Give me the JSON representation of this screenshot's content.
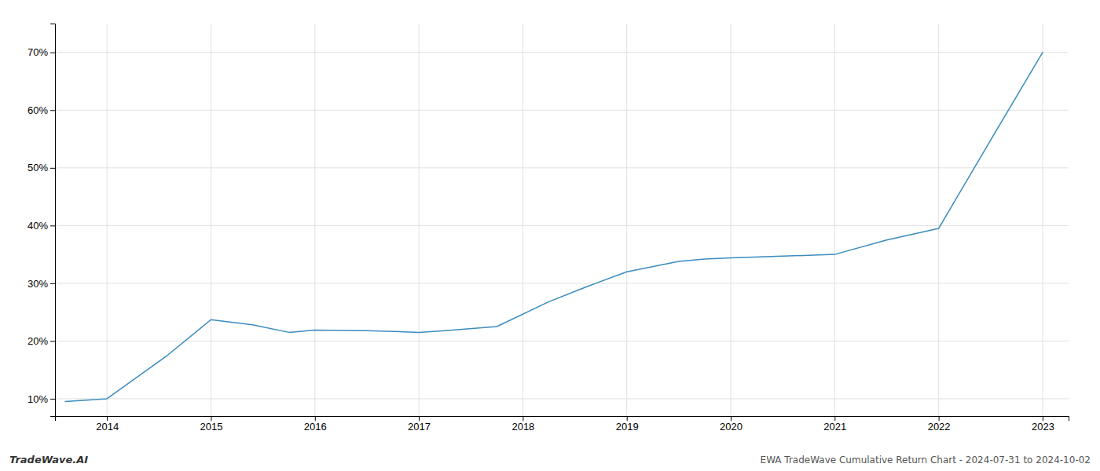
{
  "chart_data": {
    "type": "line",
    "x": [
      2013.6,
      2014.0,
      2014.58,
      2015.0,
      2015.4,
      2015.75,
      2016.0,
      2016.5,
      2017.0,
      2017.25,
      2017.75,
      2018.25,
      2018.6,
      2019.0,
      2019.5,
      2019.75,
      2020.0,
      2020.5,
      2021.0,
      2021.5,
      2022.0,
      2022.5,
      2023.0
    ],
    "values": [
      0.095,
      0.1,
      0.175,
      0.237,
      0.228,
      0.215,
      0.219,
      0.218,
      0.215,
      0.218,
      0.225,
      0.268,
      0.293,
      0.32,
      0.338,
      0.342,
      0.344,
      0.347,
      0.35,
      0.375,
      0.395,
      0.548,
      0.7
    ],
    "color": "#3a8bbf",
    "xlim": [
      2013.5,
      2023.25
    ],
    "xticks": [
      2014,
      2015,
      2016,
      2017,
      2018,
      2019,
      2020,
      2021,
      2022,
      2023
    ],
    "ylim": [
      0.07,
      0.75
    ],
    "yticks": [
      {
        "value": 0.1,
        "label": "10%"
      },
      {
        "value": 0.2,
        "label": "20%"
      },
      {
        "value": 0.3,
        "label": "30%"
      },
      {
        "value": 0.4,
        "label": "40%"
      },
      {
        "value": 0.5,
        "label": "50%"
      },
      {
        "value": 0.6,
        "label": "60%"
      },
      {
        "value": 0.7,
        "label": "70%"
      }
    ],
    "grid": true,
    "annotations": [
      "TradeWave.AI",
      "EWA TradeWave Cumulative Return Chart - 2024-07-31 to 2024-10-02"
    ]
  }
}
